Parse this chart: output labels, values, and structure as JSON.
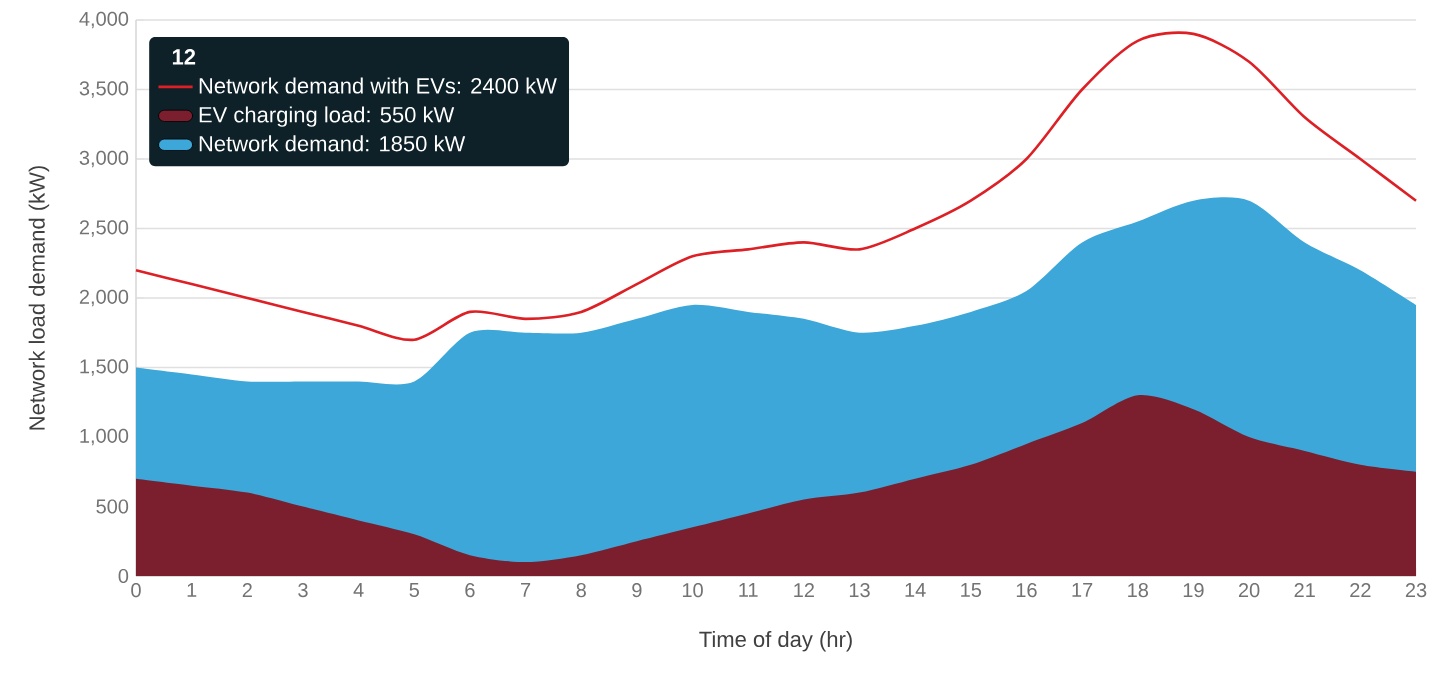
{
  "chart_data": {
    "type": "area",
    "xlabel": "Time of day (hr)",
    "ylabel": "Network load demand (kW)",
    "legend_title": "12",
    "x": [
      0,
      1,
      2,
      3,
      4,
      5,
      6,
      7,
      8,
      9,
      10,
      11,
      12,
      13,
      14,
      15,
      16,
      17,
      18,
      19,
      20,
      21,
      22,
      23
    ],
    "series": [
      {
        "name": "Network demand with EVs: 2400 kW",
        "type": "line",
        "color": "#dd2025",
        "values": [
          2200,
          2100,
          2000,
          1900,
          1800,
          1700,
          1900,
          1850,
          1900,
          2100,
          2300,
          2350,
          2400,
          2350,
          2500,
          2700,
          3000,
          3500,
          3850,
          3900,
          3700,
          3300,
          3000,
          2700
        ]
      },
      {
        "name": "EV charging load: 550 kW",
        "color": "#7b1f2e",
        "values": [
          700,
          650,
          600,
          500,
          400,
          300,
          150,
          100,
          150,
          250,
          350,
          450,
          550,
          600,
          700,
          800,
          950,
          1100,
          1300,
          1200,
          1000,
          900,
          800,
          750
        ]
      },
      {
        "name": "Network demand: 1850 kW",
        "color": "#3ca7d8",
        "values": [
          1500,
          1450,
          1400,
          1400,
          1400,
          1400,
          1750,
          1750,
          1750,
          1850,
          1950,
          1900,
          1850,
          1750,
          1800,
          1900,
          2050,
          2400,
          2550,
          2700,
          2700,
          2400,
          2200,
          1950
        ]
      }
    ],
    "xlim": [
      0,
      23
    ],
    "xticks": [
      0,
      1,
      2,
      3,
      4,
      5,
      6,
      7,
      8,
      9,
      10,
      11,
      12,
      13,
      14,
      15,
      16,
      17,
      18,
      19,
      20,
      21,
      22,
      23
    ],
    "ylim": [
      0,
      4000
    ],
    "yticks": [
      0,
      500,
      {
        "value": 1000,
        "label": "1,000"
      },
      {
        "value": 1500,
        "label": "1,500"
      },
      {
        "value": 2000,
        "label": "2,000"
      },
      {
        "value": 2500,
        "label": "2,500"
      },
      {
        "value": 3000,
        "label": "3,000"
      },
      {
        "value": 3500,
        "label": "3,500"
      },
      {
        "value": 4000,
        "label": "4,000"
      }
    ],
    "grid": "y",
    "legend": "top left",
    "marker": "none"
  }
}
